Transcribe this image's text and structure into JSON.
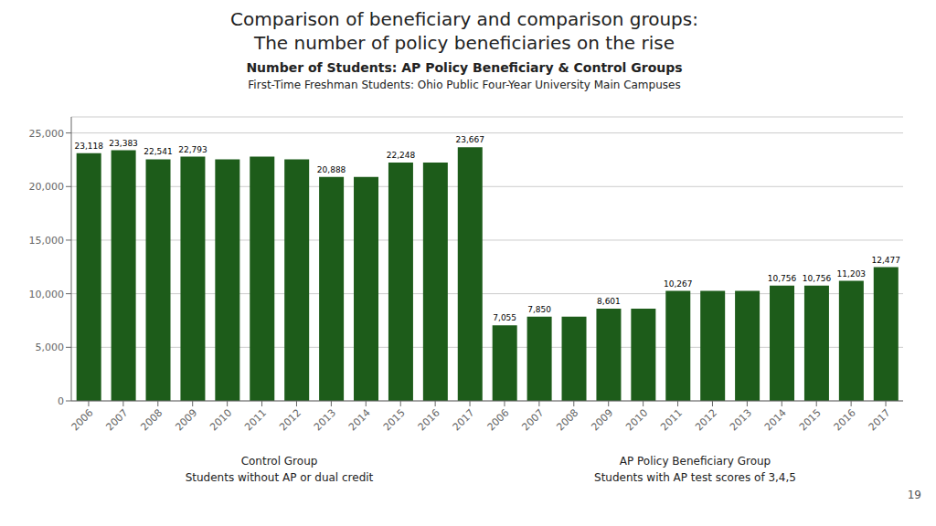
{
  "chart_data": {
    "type": "bar",
    "title": "Number of Students: AP Policy Beneficiary & Control Groups",
    "subtitle": "First-Time Freshman Students: Ohio Public Four-Year University Main Campuses",
    "categories": [
      "2006",
      "2007",
      "2008",
      "2009",
      "2010",
      "2011",
      "2012",
      "2013",
      "2014",
      "2015",
      "2016",
      "2017",
      "2006",
      "2007",
      "2008",
      "2009",
      "2010",
      "2011",
      "2012",
      "2013",
      "2014",
      "2015",
      "2016",
      "2017"
    ],
    "values": [
      23118,
      23383,
      22541,
      22793,
      22541,
      22793,
      22541,
      20888,
      20888,
      22248,
      22248,
      23667,
      7055,
      7850,
      7850,
      8601,
      8601,
      10267,
      10267,
      10267,
      10756,
      10756,
      11203,
      12477
    ],
    "value_labels": [
      "23,118",
      "23,383",
      "22,541",
      "22,793",
      null,
      null,
      null,
      "20,888",
      null,
      "22,248",
      null,
      "23,667",
      "7,055",
      "7,850",
      null,
      "8,601",
      null,
      "10,267",
      null,
      null,
      "10,756",
      "10,756",
      "11,203",
      "12,477"
    ],
    "data_labels": true,
    "color": "#1d5c1a",
    "ylim": [
      0,
      26500
    ],
    "yticks": [
      0,
      {
        "value": 5000,
        "label": "5,000"
      },
      {
        "value": 10000,
        "label": "10,000"
      },
      {
        "value": 15000,
        "label": "15,000"
      },
      {
        "value": 20000,
        "label": "20,000"
      },
      {
        "value": 25000,
        "label": "25,000"
      }
    ],
    "grid": true,
    "annotations": [
      "Comparison of beneficiary and comparison groups:",
      "The number of policy beneficiaries on the rise",
      "Control Group",
      "Students without AP or dual credit",
      "AP Policy Beneficiary Group",
      "Students with AP test scores of 3,4,5",
      "19"
    ]
  }
}
